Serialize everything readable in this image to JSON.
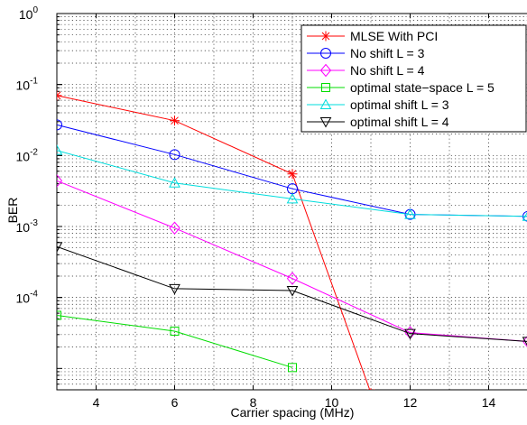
{
  "chart_data": {
    "type": "line",
    "title": "",
    "xlabel": "Carrier spacing (MHz)",
    "ylabel": "BER",
    "xlim": [
      3,
      15
    ],
    "ylim": [
      5e-06,
      1
    ],
    "yscale": "log",
    "grid": true,
    "legend_position": "top-right",
    "x_ticks": [
      4,
      6,
      8,
      10,
      12,
      14
    ],
    "y_ticks": [
      {
        "value": 1,
        "exp": "0"
      },
      {
        "value": 0.1,
        "exp": "-1"
      },
      {
        "value": 0.01,
        "exp": "-2"
      },
      {
        "value": 0.001,
        "exp": "-3"
      },
      {
        "value": 0.0001,
        "exp": "-4"
      }
    ],
    "y_tick_base": "10",
    "series": [
      {
        "name": "MLSE With PCI",
        "color": "#ff0000",
        "marker": "asterisk",
        "x": [
          3,
          6,
          9,
          11
        ],
        "y": [
          0.07,
          0.031,
          0.0055,
          4.5e-06
        ]
      },
      {
        "name": "No shift L = 3",
        "color": "#0000ff",
        "marker": "circle",
        "x": [
          3,
          6,
          9,
          12,
          15
        ],
        "y": [
          0.027,
          0.0103,
          0.0034,
          0.00148,
          0.00139
        ]
      },
      {
        "name": "No shift L = 4",
        "color": "#ff00ff",
        "marker": "diamond",
        "x": [
          3,
          6,
          9,
          12,
          15
        ],
        "y": [
          0.0044,
          0.00095,
          0.000185,
          3.2e-05,
          2.4e-05
        ]
      },
      {
        "name": "optimal state−space L = 5",
        "color": "#00dd00",
        "marker": "square",
        "x": [
          3,
          6,
          9
        ],
        "y": [
          5.6e-05,
          3.35e-05,
          1.03e-05
        ]
      },
      {
        "name": "optimal shift L = 3",
        "color": "#00dddd",
        "marker": "triangle-up",
        "x": [
          3,
          6,
          9,
          12,
          15
        ],
        "y": [
          0.0118,
          0.0041,
          0.00245,
          0.00148,
          0.00139
        ]
      },
      {
        "name": "optimal shift L = 4",
        "color": "#000000",
        "marker": "triangle-down",
        "x": [
          3,
          6,
          9,
          12,
          15
        ],
        "y": [
          0.00052,
          0.000133,
          0.000125,
          3.1e-05,
          2.4e-05
        ]
      }
    ]
  }
}
